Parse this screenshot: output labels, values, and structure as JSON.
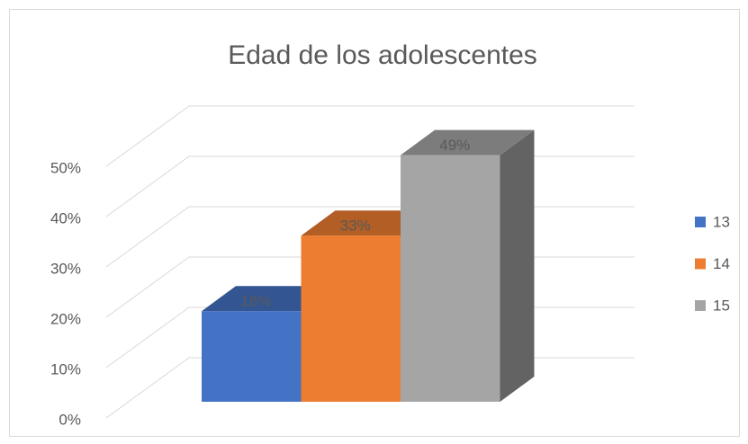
{
  "chart_data": {
    "type": "bar3d",
    "title": "Edad de los adolescentes",
    "series": [
      {
        "name": "13",
        "color": "#4472c4",
        "values": [
          18
        ],
        "value_labels": [
          "18%"
        ]
      },
      {
        "name": "14",
        "color": "#ed7d31",
        "values": [
          33
        ],
        "value_labels": [
          "33%"
        ]
      },
      {
        "name": "15",
        "color": "#a5a5a5",
        "values": [
          49
        ],
        "value_labels": [
          "49%"
        ]
      }
    ],
    "ylim": [
      0,
      50
    ],
    "yticks": [
      {
        "value": 0,
        "label": "0%"
      },
      {
        "value": 10,
        "label": "10%"
      },
      {
        "value": 20,
        "label": "20%"
      },
      {
        "value": 30,
        "label": "30%"
      },
      {
        "value": 40,
        "label": "40%"
      },
      {
        "value": 50,
        "label": "50%"
      }
    ],
    "grid": true,
    "legend": "right"
  }
}
